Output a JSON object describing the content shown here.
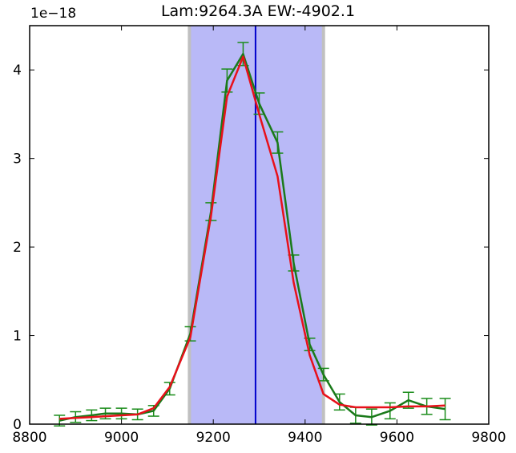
{
  "chart_data": {
    "type": "line",
    "title": "Lam:9264.3A EW:-4902.1",
    "y_multiplier_label": "1e−18",
    "xlim": [
      8800,
      9800
    ],
    "ylim": [
      0,
      4.5
    ],
    "x_ticks": [
      8800,
      9000,
      9200,
      9400,
      9600,
      9800
    ],
    "y_ticks": [
      0,
      1,
      2,
      3,
      4
    ],
    "highlight_band": {
      "x_start": 9148,
      "x_end": 9440,
      "fill": "#b9b9f7",
      "edge": "#c0c0c0"
    },
    "vertical_line": {
      "x": 9292,
      "color": "#0000cc"
    },
    "series": [
      {
        "color": "#1a7a1a",
        "error_color": "#1a8c1a",
        "x": [
          8865,
          8900,
          8935,
          8965,
          9000,
          9035,
          9070,
          9105,
          9150,
          9195,
          9230,
          9265,
          9300,
          9340,
          9375,
          9410,
          9440,
          9475,
          9510,
          9545,
          9585,
          9625,
          9665,
          9705
        ],
        "y": [
          0.04,
          0.08,
          0.1,
          0.12,
          0.12,
          0.11,
          0.15,
          0.4,
          1.02,
          2.4,
          3.88,
          4.18,
          3.62,
          3.18,
          1.82,
          0.9,
          0.56,
          0.25,
          0.1,
          0.08,
          0.15,
          0.27,
          0.2,
          0.17
        ],
        "yerr": [
          0.06,
          0.06,
          0.06,
          0.06,
          0.06,
          0.06,
          0.06,
          0.07,
          0.08,
          0.1,
          0.13,
          0.13,
          0.12,
          0.12,
          0.09,
          0.07,
          0.07,
          0.09,
          0.09,
          0.09,
          0.09,
          0.09,
          0.09,
          0.12
        ]
      },
      {
        "color": "#e8101a",
        "x": [
          8865,
          8900,
          8935,
          8965,
          9000,
          9035,
          9070,
          9105,
          9150,
          9195,
          9230,
          9265,
          9300,
          9340,
          9375,
          9410,
          9440,
          9475,
          9510,
          9545,
          9585,
          9625,
          9665,
          9705
        ],
        "y": [
          0.06,
          0.07,
          0.08,
          0.09,
          0.1,
          0.11,
          0.18,
          0.42,
          0.98,
          2.35,
          3.7,
          4.15,
          3.5,
          2.8,
          1.6,
          0.78,
          0.34,
          0.22,
          0.19,
          0.19,
          0.19,
          0.2,
          0.2,
          0.21
        ]
      }
    ]
  }
}
